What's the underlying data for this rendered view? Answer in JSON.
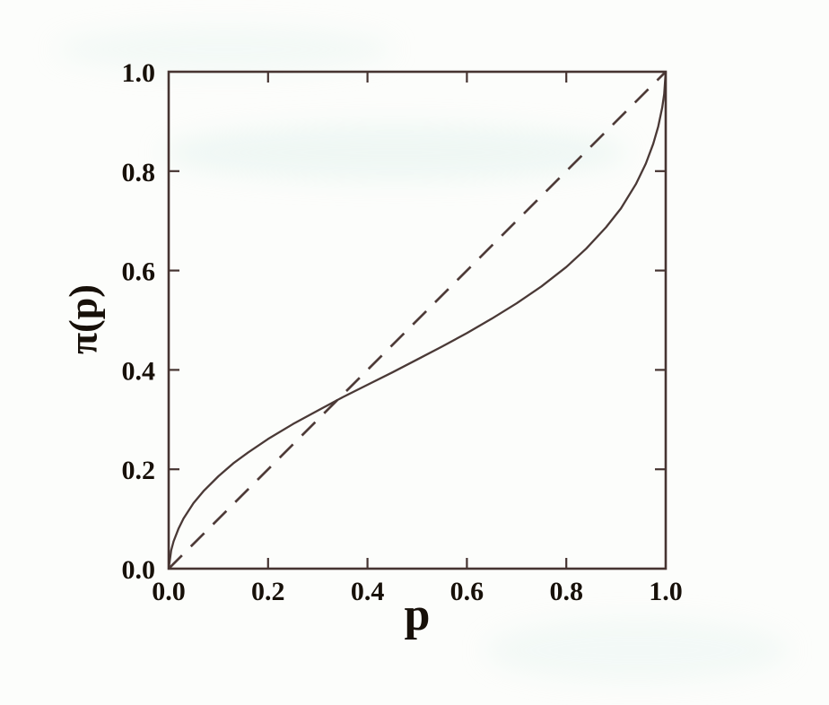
{
  "figure": {
    "background": "#fcfdfb",
    "axis_color": "#463431",
    "text_color": "#171009",
    "tick_length": 12
  },
  "chart_data": {
    "type": "line",
    "title": "",
    "xlabel": "p",
    "ylabel": "π(p)",
    "xlim": [
      0,
      1
    ],
    "ylim": [
      0,
      1
    ],
    "x_ticks": [
      "0.0",
      "0.2",
      "0.4",
      "0.6",
      "0.8",
      "1.0"
    ],
    "y_ticks": [
      "0.0",
      "0.2",
      "0.4",
      "0.6",
      "0.8",
      "1.0"
    ],
    "grid": false,
    "legend": false,
    "series": [
      {
        "name": "identity-line",
        "style": "dashed",
        "color": "#4e3b38",
        "x": [
          0,
          1
        ],
        "y": [
          0,
          1
        ]
      },
      {
        "name": "probability-weighting-curve",
        "style": "solid",
        "color": "#4a3936",
        "x": [
          0,
          0.005,
          0.01,
          0.02,
          0.03,
          0.05,
          0.07,
          0.1,
          0.13,
          0.16,
          0.2,
          0.25,
          0.3,
          0.35,
          0.4,
          0.45,
          0.5,
          0.55,
          0.6,
          0.65,
          0.7,
          0.75,
          0.8,
          0.84,
          0.88,
          0.91,
          0.94,
          0.96,
          0.975,
          0.985,
          0.993,
          0.997,
          1.0
        ],
        "y": [
          0,
          0.037,
          0.055,
          0.081,
          0.101,
          0.132,
          0.156,
          0.186,
          0.212,
          0.234,
          0.261,
          0.291,
          0.318,
          0.345,
          0.37,
          0.395,
          0.421,
          0.447,
          0.474,
          0.503,
          0.534,
          0.568,
          0.607,
          0.644,
          0.687,
          0.725,
          0.774,
          0.815,
          0.855,
          0.89,
          0.928,
          0.955,
          1.0
        ]
      }
    ],
    "annotations": {
      "curve_crosses_diagonal_at": [
        0.33,
        0.33
      ]
    }
  }
}
